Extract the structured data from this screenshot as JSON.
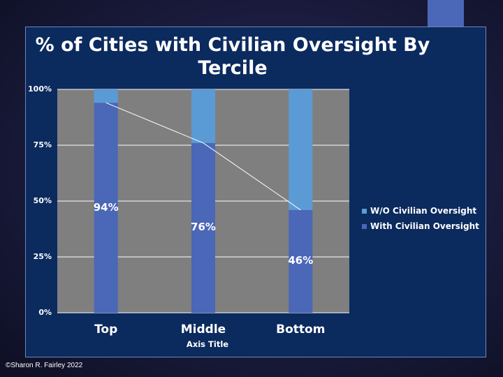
{
  "chart_data": {
    "type": "bar",
    "stacked": true,
    "title": "% of Cities with Civilian Oversight By Tercile",
    "xlabel": "Axis Title",
    "ylabel": "",
    "categories": [
      "Top",
      "Middle",
      "Bottom"
    ],
    "series": [
      {
        "name": "With Civilian Oversight",
        "values": [
          94,
          76,
          46
        ],
        "data_labels": [
          "94%",
          "76%",
          "46%"
        ],
        "color": "#4a67b8"
      },
      {
        "name": "W/O Civilian Oversight",
        "values": [
          6,
          24,
          54
        ],
        "color": "#5b9bd5"
      }
    ],
    "trend_line": {
      "series": "With Civilian Oversight",
      "color": "#ffffff"
    },
    "ylim": [
      0,
      100
    ],
    "yticks": [
      0,
      25,
      50,
      75,
      100
    ],
    "ytick_labels": [
      "0%",
      "25%",
      "50%",
      "75%",
      "100%"
    ],
    "grid": true,
    "plot_background": "#7f7f7f",
    "legend_position": "right"
  },
  "footer": {
    "copyright": "©Sharon R. Fairley 2022"
  },
  "colors": {
    "slide_background": "#1a1b3c",
    "chart_background": "#0b2a5e",
    "accent": "#4a67b8"
  }
}
